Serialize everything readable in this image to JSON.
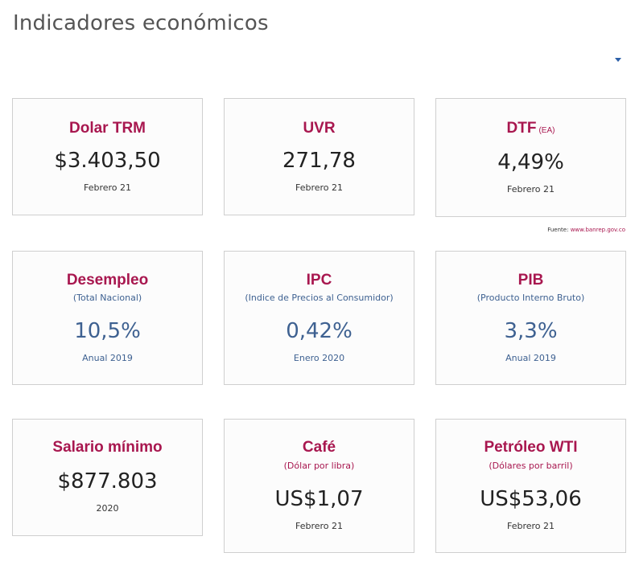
{
  "page": {
    "title": "Indicadores económicos"
  },
  "colors": {
    "title_accent": "#a8174f",
    "value_dark": "#222222",
    "value_blue": "#3e6191",
    "border": "#cfcfcf"
  },
  "dropdown": {
    "icon": "caret-down-icon"
  },
  "cards": [
    {
      "title": "Dolar TRM",
      "value": "$3.403,50",
      "date": "Febrero 21"
    },
    {
      "title": "UVR",
      "value": "271,78",
      "date": "Febrero 21"
    },
    {
      "title": "DTF",
      "title_suffix": "(EA)",
      "value": "4,49%",
      "date": "Febrero 21"
    },
    {
      "title": "Desempleo",
      "subtitle": "(Total Nacional)",
      "value": "10,5%",
      "date": "Anual 2019"
    },
    {
      "title": "IPC",
      "subtitle": "(Indice de Precios al Consumidor)",
      "value": "0,42%",
      "date": "Enero 2020"
    },
    {
      "title": "PIB",
      "subtitle": "(Producto Interno Bruto)",
      "value": "3,3%",
      "date": "Anual 2019"
    },
    {
      "title": "Salario mínimo",
      "value": "$877.803",
      "date": "2020"
    },
    {
      "title": "Café",
      "subtitle": "(Dólar por libra)",
      "value": "US$1,07",
      "date": "Febrero 21"
    },
    {
      "title": "Petróleo WTI",
      "subtitle": "(Dólares por barril)",
      "value": "US$53,06",
      "date": "Febrero 21"
    }
  ],
  "source": {
    "label": "Fuente:",
    "link_text": "www.banrep.gov.co"
  }
}
